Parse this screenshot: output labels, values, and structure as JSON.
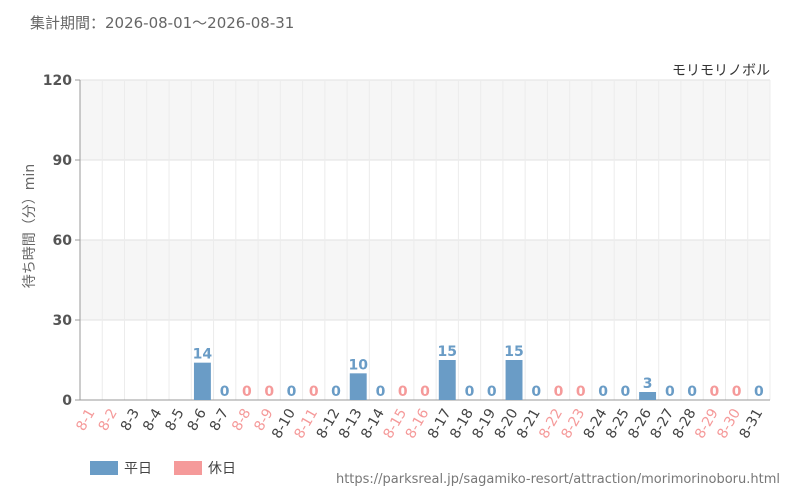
{
  "period_label": "集計期間：2026-08-01～2026-08-31",
  "source_url": "https://parksreal.jp/sagamiko-resort/attraction/morimorinoboru.html",
  "chart_data": {
    "type": "bar",
    "title": "モリモリノボル",
    "ylabel": "待ち時間（分）min",
    "ylim": [
      0,
      120
    ],
    "yticks": [
      0,
      30,
      60,
      90,
      120
    ],
    "grid": true,
    "legend_placement": "bottom-left",
    "legend": [
      {
        "name": "平日",
        "color": "#6a9cc6"
      },
      {
        "name": "休日",
        "color": "#f59a9a"
      }
    ],
    "weekday_color": "#6a9cc6",
    "holiday_color": "#f59a9a",
    "categories": [
      "8-1",
      "8-2",
      "8-3",
      "8-4",
      "8-5",
      "8-6",
      "8-7",
      "8-8",
      "8-9",
      "8-10",
      "8-11",
      "8-12",
      "8-13",
      "8-14",
      "8-15",
      "8-16",
      "8-17",
      "8-18",
      "8-19",
      "8-20",
      "8-21",
      "8-22",
      "8-23",
      "8-24",
      "8-25",
      "8-26",
      "8-27",
      "8-28",
      "8-29",
      "8-30",
      "8-31"
    ],
    "values": [
      null,
      null,
      null,
      null,
      null,
      14,
      0,
      0,
      0,
      0,
      0,
      0,
      10,
      0,
      0,
      0,
      15,
      0,
      0,
      15,
      0,
      0,
      0,
      0,
      0,
      3,
      0,
      0,
      0,
      0,
      0
    ],
    "holiday": [
      true,
      true,
      false,
      false,
      false,
      false,
      false,
      true,
      true,
      false,
      true,
      false,
      false,
      false,
      true,
      true,
      false,
      false,
      false,
      false,
      false,
      true,
      true,
      false,
      false,
      false,
      false,
      false,
      true,
      true,
      false
    ]
  }
}
